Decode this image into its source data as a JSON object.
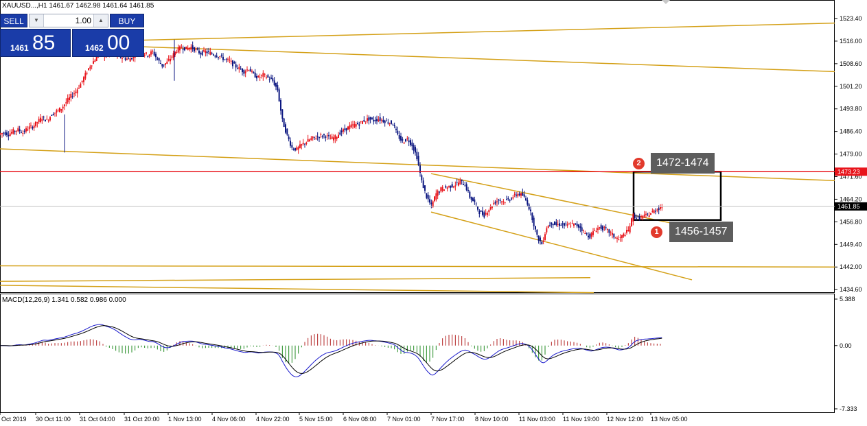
{
  "header": {
    "symbol_info": "XAUUSD...,H1  1461.67 1462.98 1461.64 1461.85"
  },
  "trade_panel": {
    "sell_label": "SELL",
    "buy_label": "BUY",
    "lot_size": "1.00",
    "sell_price_small": "1461",
    "sell_price_big": "85",
    "buy_price_small": "1462",
    "buy_price_big": "00"
  },
  "price_axis": {
    "ticks": [
      "1523.40",
      "1516.00",
      "1508.60",
      "1501.20",
      "1493.80",
      "1486.40",
      "1479.00",
      "1471.60",
      "1464.20",
      "1456.80",
      "1449.40",
      "1442.00",
      "1434.60"
    ],
    "resistance_label": "1473.23",
    "current_label": "1461.85"
  },
  "macd": {
    "label": "MACD(12,26,9) 1.341 0.582 0.986 0.000",
    "ticks": [
      "5.388",
      "0.00",
      "-7.333"
    ]
  },
  "time_axis": {
    "labels": [
      "Oct 2019",
      "30 Oct 11:00",
      "31 Oct 04:00",
      "31 Oct 20:00",
      "1 Nov 13:00",
      "4 Nov 06:00",
      "4 Nov 22:00",
      "5 Nov 15:00",
      "6 Nov 08:00",
      "7 Nov 01:00",
      "7 Nov 17:00",
      "8 Nov 10:00",
      "11 Nov 03:00",
      "11 Nov 19:00",
      "12 Nov 12:00",
      "13 Nov 05:00"
    ]
  },
  "annotations": [
    {
      "number": "1",
      "text": "1456-1457"
    },
    {
      "number": "2",
      "text": "1472-1474"
    }
  ],
  "colors": {
    "bull": "#e8141b",
    "bear": "#0b1680",
    "trendline": "#d4a017",
    "resistance": "#e8141b",
    "macd_line": "#1a1acc",
    "signal_line": "#000000",
    "hist_pos": "#b22222",
    "hist_neg": "#228b22"
  },
  "chart_data": {
    "type": "candlestick",
    "price_range": [
      1434.6,
      1526.0
    ],
    "resistance_level": 1473.23,
    "current_price": 1461.85,
    "close_path": [
      1486.0,
      1485.5,
      1486.5,
      1487.0,
      1486.0,
      1487.5,
      1488.0,
      1489.5,
      1491.0,
      1490.0,
      1492.0,
      1493.0,
      1494.0,
      1496.0,
      1498.0,
      1499.5,
      1502.0,
      1505.0,
      1508.0,
      1510.0,
      1512.0,
      1511.0,
      1512.5,
      1512.0,
      1511.0,
      1510.5,
      1510.0,
      1511.0,
      1513.0,
      1512.0,
      1511.5,
      1512.5,
      1510.0,
      1508.0,
      1509.0,
      1511.0,
      1513.0,
      1514.0,
      1513.5,
      1514.0,
      1513.0,
      1512.0,
      1512.5,
      1512.0,
      1511.5,
      1511.0,
      1510.0,
      1509.5,
      1508.0,
      1507.0,
      1506.0,
      1507.0,
      1505.0,
      1504.0,
      1505.0,
      1504.0,
      1503.0,
      1500.0,
      1490.0,
      1485.0,
      1481.0,
      1480.5,
      1482.0,
      1483.0,
      1484.0,
      1484.5,
      1485.0,
      1485.0,
      1484.0,
      1484.5,
      1486.0,
      1487.0,
      1488.0,
      1488.5,
      1489.0,
      1490.0,
      1490.5,
      1490.0,
      1490.5,
      1490.0,
      1489.5,
      1489.0,
      1485.0,
      1483.0,
      1484.0,
      1482.0,
      1478.0,
      1470.0,
      1465.0,
      1462.0,
      1466.0,
      1467.5,
      1468.0,
      1468.5,
      1469.0,
      1470.0,
      1469.0,
      1465.0,
      1463.0,
      1460.0,
      1459.0,
      1461.0,
      1463.0,
      1464.0,
      1463.5,
      1464.0,
      1465.0,
      1466.0,
      1465.5,
      1463.0,
      1458.0,
      1452.0,
      1449.5,
      1455.0,
      1456.5,
      1455.8,
      1456.0,
      1455.5,
      1456.0,
      1455.8,
      1455.0,
      1453.0,
      1452.0,
      1454.0,
      1455.0,
      1454.5,
      1453.5,
      1452.0,
      1451.0,
      1452.5,
      1454.0,
      1459.0,
      1458.0,
      1458.5,
      1459.0,
      1460.0,
      1461.0,
      1461.85
    ],
    "trendlines": [
      {
        "name": "upper channel A",
        "from": [
          "31 Oct 04:00",
          1515.8
        ],
        "to": [
          "13 Nov 05:00+",
          1521.9
        ]
      },
      {
        "name": "upper channel B",
        "from": [
          "31 Oct 04:00",
          1514.9
        ],
        "to": [
          "13 Nov 05:00+",
          1506.0
        ]
      },
      {
        "name": "mid descending",
        "from": [
          "Oct 2019",
          1480.7
        ],
        "to": [
          "13 Nov 05:00+",
          1470.3
        ]
      },
      {
        "name": "channel top",
        "from": [
          "7 Nov 17:00",
          1472.6
        ],
        "to": [
          "13 Nov 05:00",
          1455.0
        ]
      },
      {
        "name": "channel bottom",
        "from": [
          "7 Nov 17:00",
          1460.0
        ],
        "to": [
          "13 Nov 05:00",
          1437.8
        ]
      },
      {
        "name": "lower support",
        "from": [
          "Oct 2019",
          1442.4
        ],
        "to": [
          "13 Nov 05:00+",
          1442.0
        ]
      }
    ],
    "target_box": {
      "from_time": "12 Nov 12:00",
      "to_time": "13 Nov 05:00",
      "high": 1473.23,
      "low": 1457.4
    },
    "macd": {
      "fast": 12,
      "slow": 26,
      "signal": 9,
      "values": [
        1.341,
        0.582,
        0.986,
        0.0
      ],
      "range": [
        -7.333,
        5.388
      ]
    }
  }
}
